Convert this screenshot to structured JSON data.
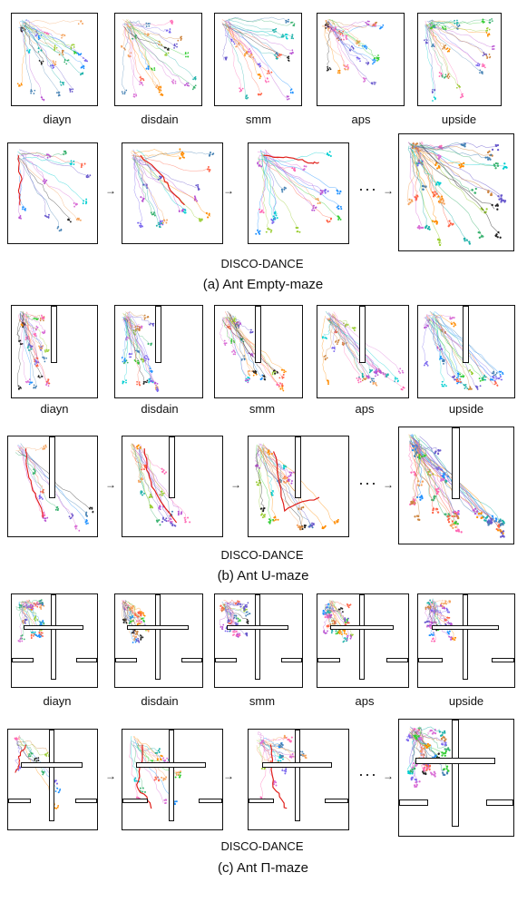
{
  "baseline_labels": [
    "diayn",
    "disdain",
    "smm",
    "aps",
    "upside"
  ],
  "method_label": "DISCO-DANCE",
  "ellipsis": "···",
  "arrow_glyph": "→",
  "sections": [
    {
      "caption": "(a) Ant Empty-maze",
      "maze": "empty"
    },
    {
      "caption": "(b) Ant U-maze",
      "maze": "u"
    },
    {
      "caption": "(c) Ant Π-maze",
      "maze": "pi"
    }
  ],
  "colors": {
    "highlight_path": "#e0201b",
    "wall": "#111111"
  }
}
